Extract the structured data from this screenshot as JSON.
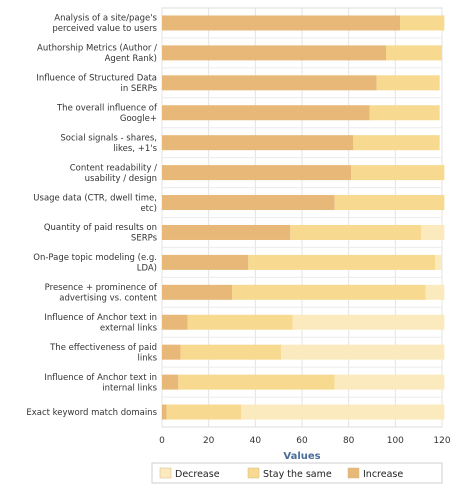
{
  "chart_data": {
    "type": "bar",
    "orientation": "horizontal",
    "stacked": true,
    "categories": [
      "Analysis of a site/page's perceived value to users",
      "Authorship Metrics (Author / Agent Rank)",
      "Influence of Structured Data in SERPs",
      "The overall influence of Google+",
      "Social signals - shares, likes, +1's",
      "Content readability / usability / design",
      "Usage data (CTR, dwell time, etc)",
      "Quantity of paid results on SERPs",
      "On-Page topic modeling (e.g. LDA)",
      "Presence + prominence of advertising vs. content",
      "Influence of Anchor text in external links",
      "The effectiveness of paid links",
      "Influence of Anchor text in internal links",
      "Exact keyword match domains"
    ],
    "series": [
      {
        "name": "Increase",
        "color": "#e8b878",
        "values": [
          102,
          96,
          92,
          89,
          82,
          81,
          74,
          55,
          37,
          30,
          11,
          8,
          7,
          2
        ]
      },
      {
        "name": "Stay the same",
        "color": "#f7d98f",
        "values": [
          19,
          24,
          27,
          30,
          37,
          40,
          47,
          56,
          80,
          83,
          45,
          43,
          67,
          32
        ]
      },
      {
        "name": "Decrease",
        "color": "#fbeabd",
        "values": [
          0,
          0,
          0,
          0,
          0,
          0,
          0,
          10,
          3,
          8,
          65,
          70,
          47,
          87
        ]
      }
    ],
    "xlabel": "Values",
    "xlim": [
      0,
      120
    ],
    "xticks": [
      0,
      20,
      40,
      60,
      80,
      100,
      120
    ],
    "grid": true,
    "legend_position": "bottom",
    "legend_order": [
      "Decrease",
      "Stay the same",
      "Increase"
    ]
  }
}
